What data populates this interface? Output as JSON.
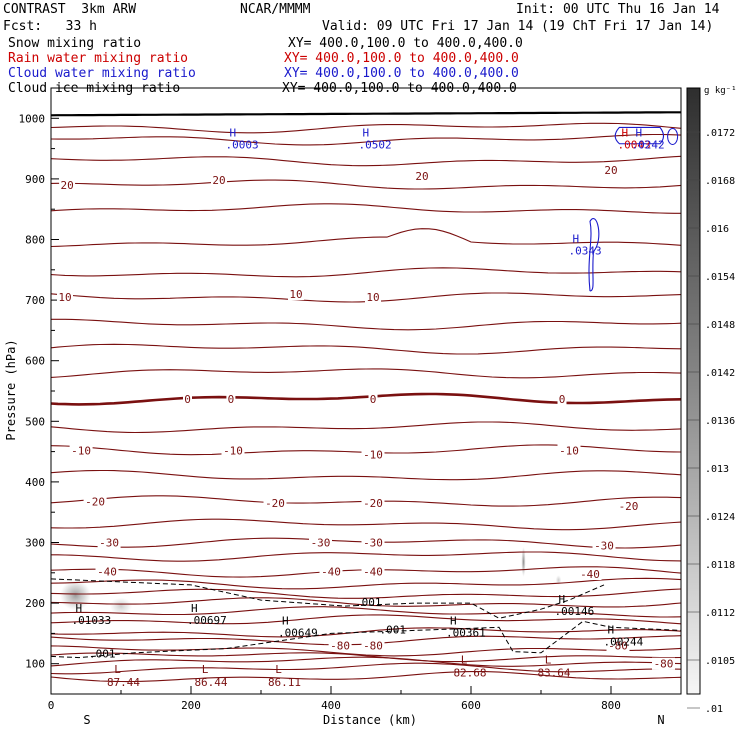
{
  "header": {
    "model": "CONTRAST  3km ARW",
    "org": "NCAR/MMMM",
    "init": "Init: 00 UTC Thu 16 Jan 14",
    "fcst": "Fcst:   33 h",
    "valid": "Valid: 09 UTC Fri 17 Jan 14 (19 ChT Fri 17 Jan 14)",
    "fields": [
      {
        "name": "Snow mixing ratio",
        "xy": "XY= 400.0,100.0 to 400.0,400.0",
        "color": "#000000"
      },
      {
        "name": "Rain water mixing ratio",
        "xy": "XY= 400.0,100.0 to 400.0,400.0",
        "color": "#cc0000"
      },
      {
        "name": "Cloud water mixing ratio",
        "xy": "XY= 400.0,100.0 to 400.0,400.0",
        "color": "#1a1acc"
      },
      {
        "name": "Cloud ice mixing ratio",
        "xy": "XY= 400.0,100.0 to 400.0,400.0",
        "color": "#000000"
      }
    ]
  },
  "chart_data": {
    "type": "contour-cross-section",
    "xlabel": "Distance (km)",
    "ylabel": "Pressure (hPa)",
    "xlim": [
      0,
      900
    ],
    "ylim": [
      1050,
      50
    ],
    "xticks": [
      0,
      200,
      400,
      600,
      800
    ],
    "yticks": [
      100,
      200,
      300,
      400,
      500,
      600,
      700,
      800,
      900,
      1000
    ],
    "end_labels": {
      "left": "S",
      "right": "N"
    },
    "colorbar": {
      "unit": "g kg⁻¹",
      "labels": [
        ".0172",
        ".0168",
        ".016",
        ".0154",
        ".0148",
        ".0142",
        ".0136",
        ".013",
        ".0124",
        ".0118",
        ".0112",
        ".0105",
        ".01"
      ]
    },
    "temperature_labels": [
      {
        "t": "-80",
        "x": 875,
        "p": 100
      },
      {
        "t": "-80",
        "x": 413,
        "p": 130
      },
      {
        "t": "-80",
        "x": 460,
        "p": 130
      },
      {
        "t": "-80",
        "x": 810,
        "p": 130
      },
      {
        "t": "-40",
        "x": 80,
        "p": 252
      },
      {
        "t": "-40",
        "x": 400,
        "p": 252
      },
      {
        "t": "-40",
        "x": 460,
        "p": 252
      },
      {
        "t": "-40",
        "x": 770,
        "p": 248
      },
      {
        "t": "-30",
        "x": 83,
        "p": 300
      },
      {
        "t": "-30",
        "x": 385,
        "p": 300
      },
      {
        "t": "-30",
        "x": 460,
        "p": 300
      },
      {
        "t": "-30",
        "x": 790,
        "p": 295
      },
      {
        "t": "-20",
        "x": 63,
        "p": 368
      },
      {
        "t": "-20",
        "x": 320,
        "p": 365
      },
      {
        "t": "-20",
        "x": 460,
        "p": 365
      },
      {
        "t": "-20",
        "x": 825,
        "p": 360
      },
      {
        "t": "-10",
        "x": 43,
        "p": 452
      },
      {
        "t": "-10",
        "x": 260,
        "p": 452
      },
      {
        "t": "-10",
        "x": 460,
        "p": 445
      },
      {
        "t": "-10",
        "x": 740,
        "p": 452
      },
      {
        "t": "0",
        "x": 195,
        "p": 537
      },
      {
        "t": "0",
        "x": 257,
        "p": 537
      },
      {
        "t": "0",
        "x": 460,
        "p": 537
      },
      {
        "t": "0",
        "x": 730,
        "p": 537
      },
      {
        "t": "10",
        "x": 20,
        "p": 705
      },
      {
        "t": "10",
        "x": 350,
        "p": 710
      },
      {
        "t": "10",
        "x": 460,
        "p": 705
      },
      {
        "t": "20",
        "x": 23,
        "p": 890
      },
      {
        "t": "20",
        "x": 240,
        "p": 898
      },
      {
        "t": "20",
        "x": 530,
        "p": 905
      },
      {
        "t": "20",
        "x": 800,
        "p": 915
      }
    ],
    "pressure_extrema": [
      {
        "kind": "L",
        "value": "87.44",
        "x": 95,
        "p": 85
      },
      {
        "kind": "L",
        "value": "86.44",
        "x": 220,
        "p": 85
      },
      {
        "kind": "L",
        "value": "86.11",
        "x": 325,
        "p": 85
      },
      {
        "kind": "L",
        "value": "82.68",
        "x": 590,
        "p": 100
      },
      {
        "kind": "L",
        "value": "83.64",
        "x": 710,
        "p": 100
      }
    ],
    "mixing_extrema": [
      {
        "kind": "H",
        "value": ".001",
        "x": 60,
        "p": 110,
        "field": "cloud ice",
        "show_h": false
      },
      {
        "kind": "H",
        "value": ".001",
        "x": 475,
        "p": 150,
        "field": "cloud ice",
        "show_h": false
      },
      {
        "kind": "H",
        "value": ".001",
        "x": 440,
        "p": 195,
        "field": "cloud ice",
        "show_h": false
      },
      {
        "kind": "H",
        "value": ".01033",
        "x": 35,
        "p": 185,
        "field": "snow",
        "show_h": true
      },
      {
        "kind": "H",
        "value": ".00697",
        "x": 200,
        "p": 185,
        "field": "snow",
        "show_h": true
      },
      {
        "kind": "H",
        "value": ".00649",
        "x": 330,
        "p": 165,
        "field": "snow",
        "show_h": true
      },
      {
        "kind": "H",
        "value": ".00361",
        "x": 570,
        "p": 165,
        "field": "snow",
        "show_h": true
      },
      {
        "kind": "H",
        "value": ".00146",
        "x": 725,
        "p": 200,
        "field": "snow",
        "show_h": true
      },
      {
        "kind": "H",
        "value": ".00244",
        "x": 795,
        "p": 150,
        "field": "snow",
        "show_h": true
      },
      {
        "kind": "H",
        "value": ".0343",
        "x": 745,
        "p": 795,
        "field": "cloud water",
        "show_h": true
      },
      {
        "kind": "H",
        "value": ".0003",
        "x": 255,
        "p": 970,
        "field": "cloud water",
        "show_h": true
      },
      {
        "kind": "H",
        "value": ".0502",
        "x": 445,
        "p": 970,
        "field": "cloud water",
        "show_h": true
      },
      {
        "kind": "H",
        "value": ".0043",
        "x": 815,
        "p": 970,
        "field": "rain water",
        "show_h": true
      },
      {
        "kind": "H",
        "value": ".0242",
        "x": 835,
        "p": 970,
        "field": "cloud water",
        "show_h": true
      }
    ],
    "snow_patches": [
      {
        "x": 35,
        "p": 213,
        "rx_km": 22,
        "rp_hPa": 25,
        "intensity": 0.6
      },
      {
        "x": 100,
        "p": 195,
        "rx_km": 16,
        "rp_hPa": 14,
        "intensity": 0.3
      },
      {
        "x": 675,
        "p": 268,
        "rx_km": 3,
        "rp_hPa": 25,
        "intensity": 0.7
      },
      {
        "x": 725,
        "p": 238,
        "rx_km": 4,
        "rp_hPa": 8,
        "intensity": 0.3
      }
    ]
  }
}
